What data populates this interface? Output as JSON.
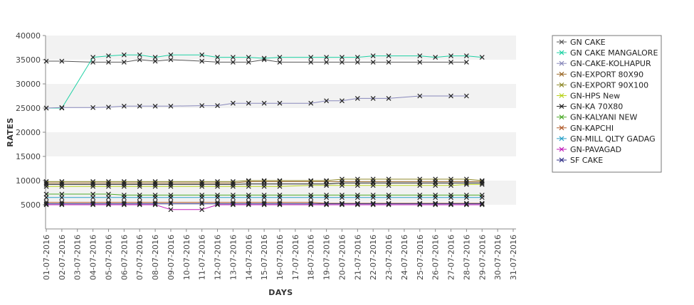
{
  "chart_data": {
    "type": "line",
    "xlabel": "DAYS",
    "ylabel": "RATES",
    "ylim": [
      0,
      40000
    ],
    "yticks": [
      5000,
      10000,
      15000,
      20000,
      25000,
      30000,
      35000,
      40000
    ],
    "grid": "alternating horizontal bands",
    "legend": "right",
    "categories": [
      "01-07-2016",
      "02-07-2016",
      "03-07-2016",
      "04-07-2016",
      "05-07-2016",
      "06-07-2016",
      "07-07-2016",
      "08-07-2016",
      "09-07-2016",
      "10-07-2016",
      "11-07-2016",
      "12-07-2016",
      "13-07-2016",
      "14-07-2016",
      "15-07-2016",
      "16-07-2016",
      "17-07-2016",
      "18-07-2016",
      "19-07-2016",
      "20-07-2016",
      "21-07-2016",
      "22-07-2016",
      "23-07-2016",
      "24-07-2016",
      "25-07-2016",
      "26-07-2016",
      "27-07-2016",
      "28-07-2016",
      "29-07-2016",
      "30-07-2016",
      "31-07-2016"
    ],
    "series": [
      {
        "name": "GN CAKE",
        "color": "#555555",
        "values": [
          34700,
          34700,
          null,
          34500,
          34500,
          34500,
          35000,
          34700,
          35000,
          null,
          34700,
          34500,
          34500,
          34500,
          35000,
          34500,
          null,
          34500,
          34500,
          34500,
          34500,
          34500,
          34500,
          null,
          34500,
          null,
          34500,
          34500,
          null,
          null,
          null
        ]
      },
      {
        "name": "GN CAKE MANGALORE",
        "color": "#1fd1a4",
        "values": [
          25000,
          25000,
          null,
          35500,
          35800,
          36000,
          36000,
          35500,
          36000,
          null,
          36000,
          35500,
          35500,
          35500,
          35300,
          35500,
          null,
          35500,
          35500,
          35500,
          35500,
          35800,
          35800,
          null,
          35800,
          35500,
          35800,
          35800,
          35500,
          null,
          null
        ]
      },
      {
        "name": "GN-CAKE-KOLHAPUR",
        "color": "#8888bb",
        "values": [
          25000,
          25100,
          null,
          25100,
          25200,
          25400,
          25400,
          25400,
          25400,
          null,
          25500,
          25500,
          26000,
          26000,
          26000,
          26000,
          null,
          26000,
          26500,
          26500,
          27000,
          27000,
          27000,
          null,
          27500,
          null,
          27500,
          27500,
          null,
          null,
          null
        ]
      },
      {
        "name": "GN-EXPORT 80X90",
        "color": "#9c6a2a",
        "values": [
          9500,
          9500,
          null,
          9500,
          9500,
          9500,
          9500,
          9500,
          9500,
          null,
          9500,
          9500,
          9500,
          9800,
          9800,
          9800,
          null,
          9800,
          9800,
          9800,
          9800,
          9800,
          9800,
          null,
          9800,
          9800,
          9800,
          9800,
          9800,
          null,
          null
        ]
      },
      {
        "name": "GN-EXPORT 90X100",
        "color": "#8f8a2a",
        "values": [
          9800,
          9800,
          null,
          9800,
          9800,
          9800,
          9800,
          9800,
          9800,
          null,
          9800,
          9800,
          9800,
          10000,
          10000,
          10000,
          null,
          10000,
          10000,
          10300,
          10300,
          10300,
          10300,
          null,
          10300,
          10300,
          10300,
          10300,
          10000,
          null,
          null
        ]
      },
      {
        "name": "GN-HPS New",
        "color": "#b8d21a",
        "values": [
          8800,
          8800,
          null,
          8800,
          8800,
          8800,
          8800,
          8800,
          8800,
          null,
          8800,
          8800,
          8800,
          8800,
          8800,
          8800,
          null,
          9000,
          9000,
          9000,
          9000,
          9000,
          9000,
          null,
          9000,
          9000,
          9000,
          9200,
          9200,
          null,
          null
        ]
      },
      {
        "name": "GN-KA 70X80",
        "color": "#222222",
        "values": [
          9200,
          9200,
          null,
          9200,
          9200,
          9200,
          9200,
          9200,
          9200,
          null,
          9200,
          9200,
          9200,
          9300,
          9300,
          9300,
          null,
          9300,
          9300,
          9500,
          9500,
          9500,
          9500,
          null,
          9500,
          9500,
          9500,
          9500,
          9500,
          null,
          null
        ]
      },
      {
        "name": "GN-KALYANI NEW",
        "color": "#4daa2a",
        "values": [
          7200,
          7200,
          null,
          7200,
          7200,
          7000,
          7000,
          7000,
          7000,
          null,
          7000,
          7000,
          7000,
          7000,
          7000,
          7000,
          null,
          7000,
          7000,
          7000,
          7000,
          7000,
          7000,
          null,
          7000,
          7000,
          7000,
          7000,
          7000,
          null,
          null
        ]
      },
      {
        "name": "GN-KAPCHI",
        "color": "#b05a2a",
        "values": [
          5500,
          5500,
          null,
          5500,
          5500,
          5500,
          5500,
          5500,
          5500,
          null,
          5500,
          5500,
          5500,
          5500,
          5500,
          5500,
          null,
          5500,
          5300,
          5300,
          5300,
          5300,
          5300,
          null,
          5300,
          5300,
          5300,
          5300,
          5300,
          null,
          null
        ]
      },
      {
        "name": "GN-MILL QLTY GADAG",
        "color": "#2aa0c8",
        "values": [
          6500,
          6500,
          null,
          6500,
          6500,
          6500,
          6500,
          6500,
          6500,
          null,
          6500,
          6500,
          6500,
          6500,
          6500,
          6500,
          null,
          6500,
          6500,
          6500,
          6500,
          6500,
          6500,
          null,
          6500,
          6500,
          6500,
          6500,
          6500,
          null,
          null
        ]
      },
      {
        "name": "GN-PAVAGAD",
        "color": "#c01ab8",
        "values": [
          5000,
          5000,
          null,
          5000,
          5000,
          5000,
          5000,
          5000,
          4000,
          null,
          4000,
          5000,
          5000,
          5000,
          5000,
          5000,
          null,
          5000,
          5000,
          5000,
          5000,
          5000,
          5000,
          null,
          5000,
          5000,
          5000,
          5000,
          5000,
          null,
          null
        ]
      },
      {
        "name": "SF CAKE",
        "color": "#333388",
        "values": [
          5200,
          5200,
          null,
          5200,
          5200,
          5200,
          5200,
          5200,
          5200,
          null,
          5200,
          5200,
          5200,
          5200,
          5200,
          5200,
          null,
          5200,
          5200,
          5200,
          5200,
          5200,
          5200,
          null,
          5200,
          5200,
          5200,
          5200,
          5200,
          null,
          null
        ]
      }
    ]
  }
}
